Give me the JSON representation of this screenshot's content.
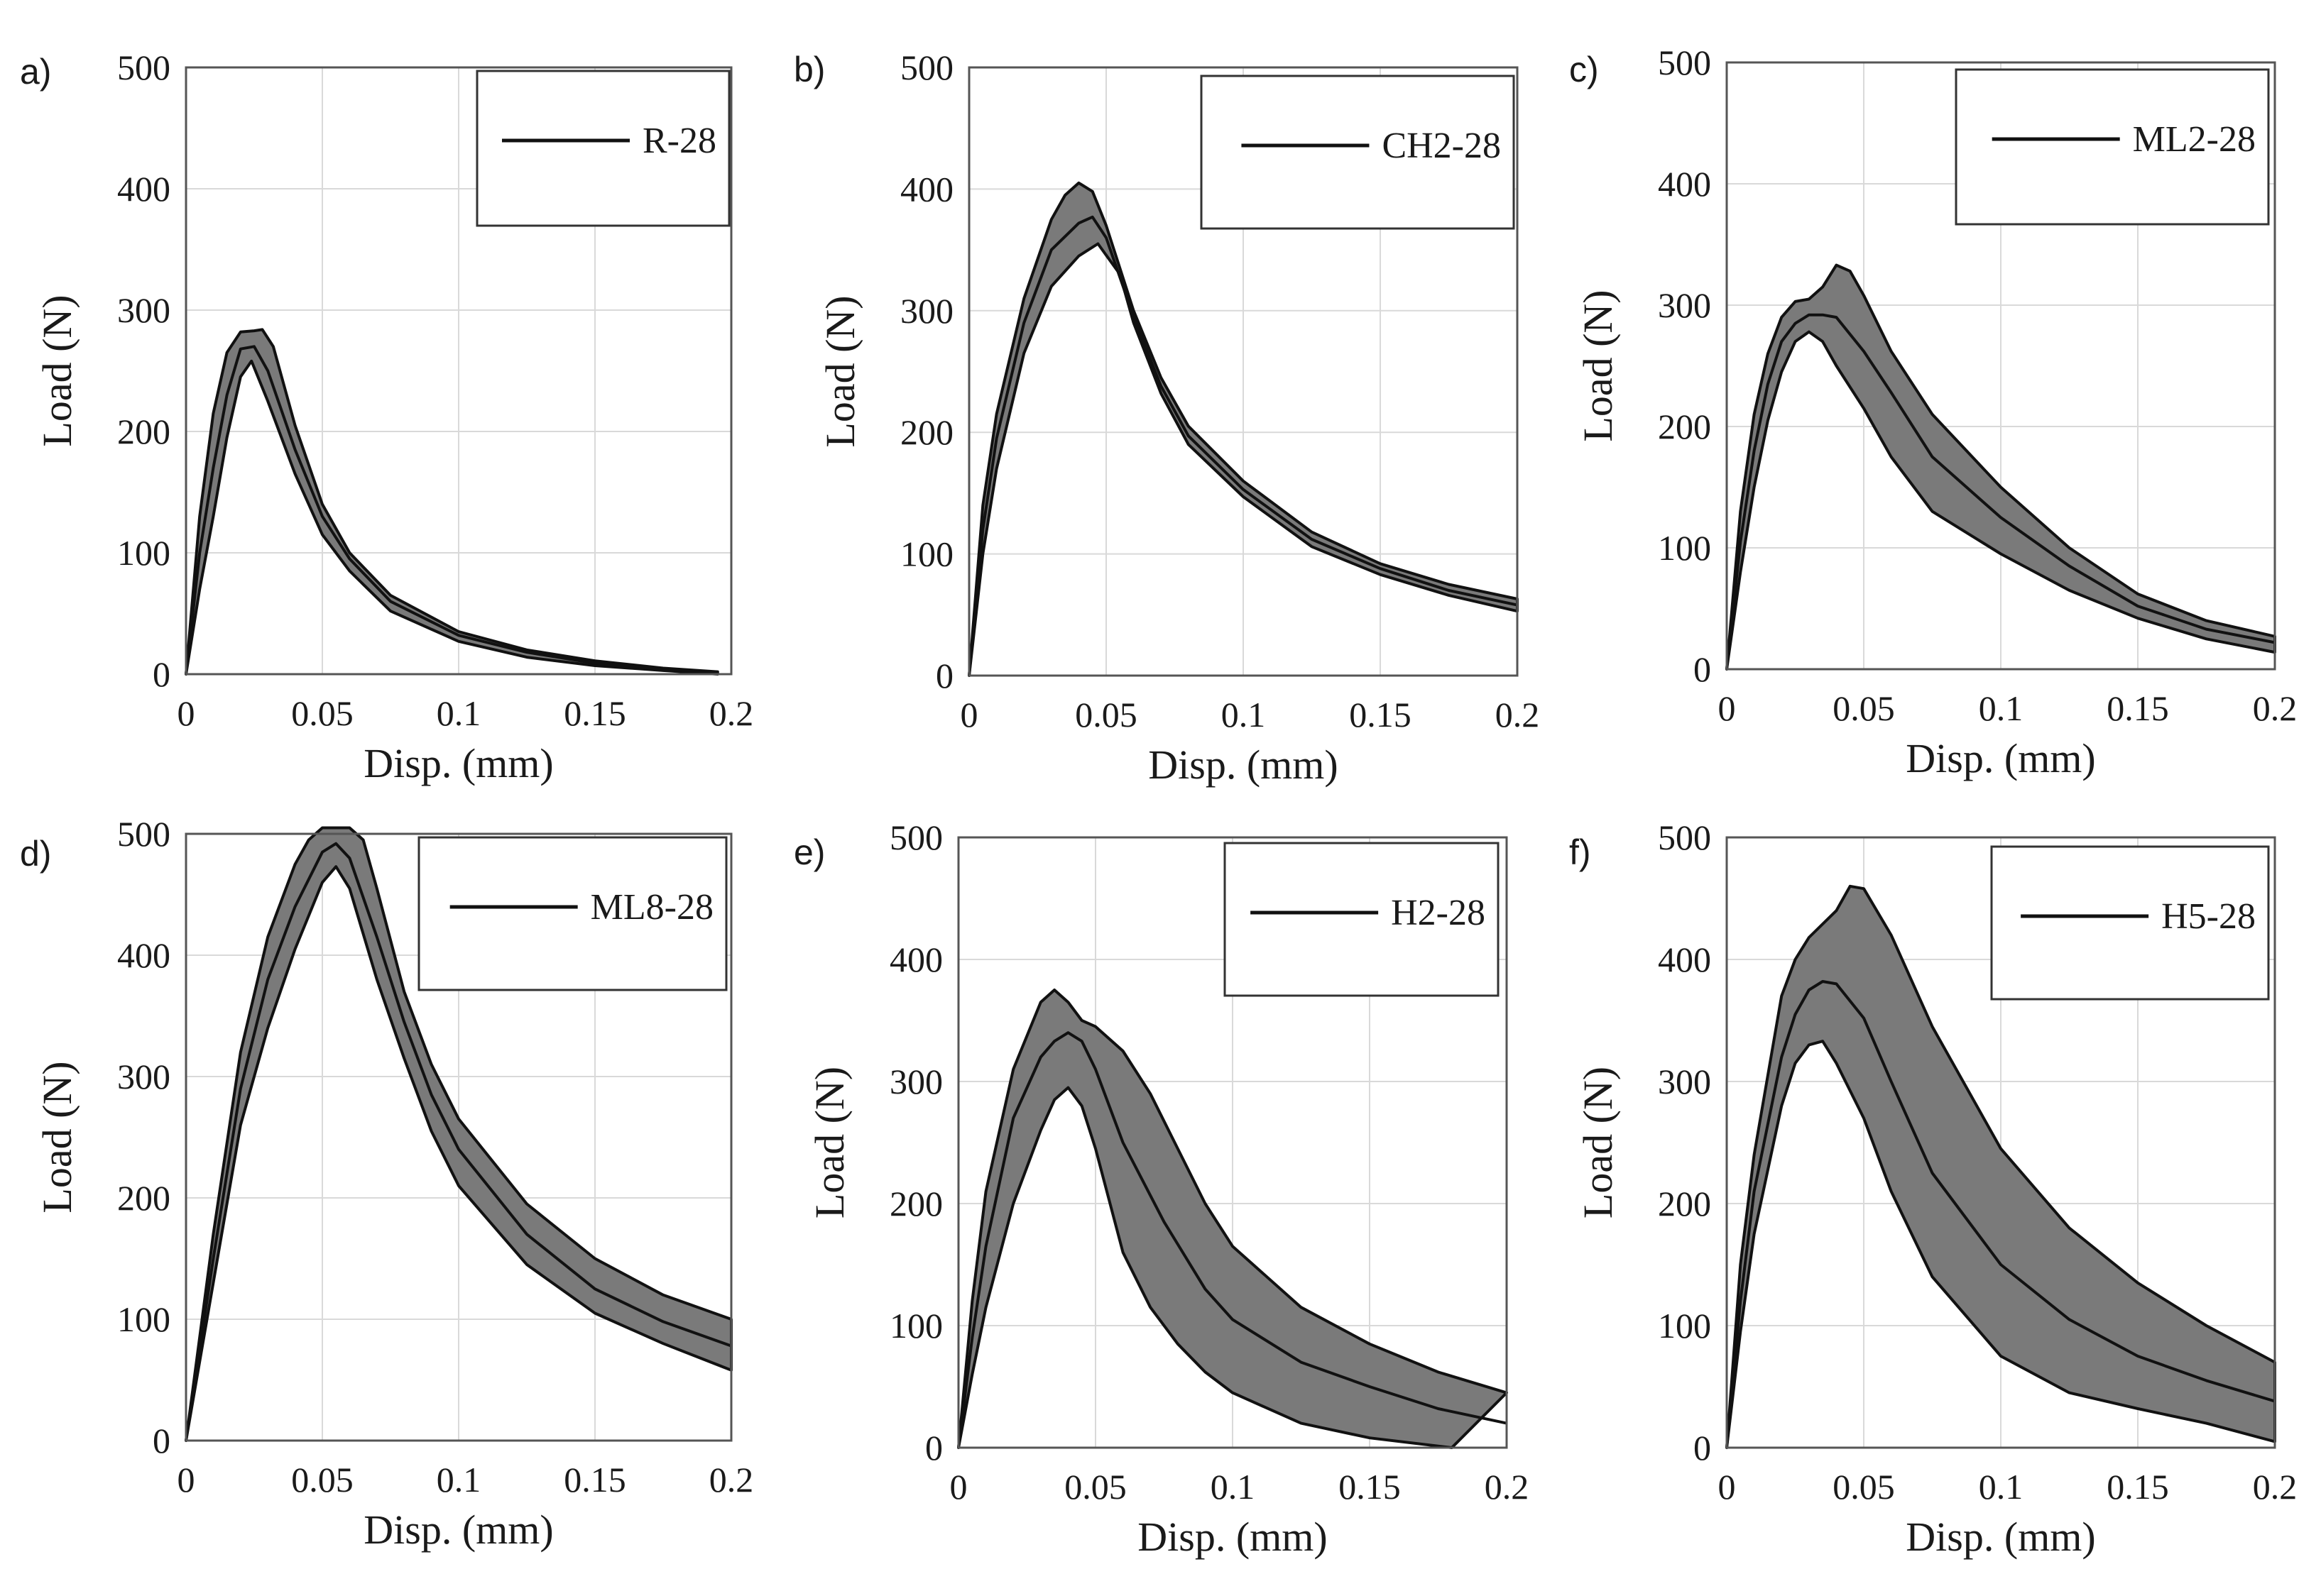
{
  "figure": {
    "xlabel": "Disp. (mm)",
    "ylabel": "Load (N)",
    "band_color": "#7a7a7a",
    "line_color": "#111111"
  },
  "chart_data": [
    {
      "panel": "a)",
      "type": "line",
      "legend": "R-28",
      "xlabel": "Disp. (mm)",
      "ylabel": "Load (N)",
      "xlim": [
        0,
        0.2
      ],
      "ylim": [
        0,
        500
      ],
      "xticks": [
        0,
        0.05,
        0.1,
        0.15,
        0.2
      ],
      "xtick_labels": [
        "0",
        "0.05",
        "0.1",
        "0.15",
        "0.2"
      ],
      "yticks": [
        0,
        100,
        200,
        300,
        400,
        500
      ],
      "ytick_labels": [
        "0",
        "100",
        "200",
        "300",
        "400",
        "500"
      ],
      "series": [
        {
          "name": "R-28 upper bound",
          "x": [
            0,
            0.005,
            0.01,
            0.015,
            0.02,
            0.025,
            0.028,
            0.032,
            0.04,
            0.05,
            0.06,
            0.075,
            0.1,
            0.125,
            0.15,
            0.175,
            0.195
          ],
          "values": [
            0,
            130,
            215,
            265,
            282,
            283,
            284,
            270,
            205,
            140,
            100,
            65,
            35,
            20,
            11,
            5,
            2
          ]
        },
        {
          "name": "R-28 mean",
          "x": [
            0,
            0.005,
            0.01,
            0.015,
            0.02,
            0.025,
            0.03,
            0.04,
            0.05,
            0.06,
            0.075,
            0.1,
            0.125,
            0.15,
            0.175,
            0.195
          ],
          "values": [
            0,
            100,
            170,
            230,
            268,
            270,
            250,
            185,
            130,
            95,
            60,
            32,
            18,
            9,
            4,
            1
          ]
        },
        {
          "name": "R-28 lower bound",
          "x": [
            0,
            0.005,
            0.01,
            0.015,
            0.02,
            0.024,
            0.03,
            0.04,
            0.05,
            0.06,
            0.075,
            0.1,
            0.125,
            0.15,
            0.175,
            0.195
          ],
          "values": [
            0,
            70,
            130,
            195,
            245,
            258,
            225,
            165,
            115,
            85,
            52,
            27,
            14,
            7,
            3,
            0
          ]
        }
      ]
    },
    {
      "panel": "b)",
      "type": "line",
      "legend": "CH2-28",
      "xlabel": "Disp. (mm)",
      "ylabel": "Load (N)",
      "xlim": [
        0,
        0.2
      ],
      "ylim": [
        0,
        500
      ],
      "xticks": [
        0,
        0.05,
        0.1,
        0.15,
        0.2
      ],
      "xtick_labels": [
        "0",
        "0.05",
        "0.1",
        "0.15",
        "0.2"
      ],
      "yticks": [
        0,
        100,
        200,
        300,
        400,
        500
      ],
      "ytick_labels": [
        "0",
        "100",
        "200",
        "300",
        "400",
        "500"
      ],
      "series": [
        {
          "name": "CH2-28 upper bound",
          "x": [
            0,
            0.005,
            0.01,
            0.02,
            0.03,
            0.035,
            0.04,
            0.045,
            0.05,
            0.06,
            0.07,
            0.08,
            0.1,
            0.125,
            0.15,
            0.175,
            0.2
          ],
          "values": [
            0,
            140,
            215,
            310,
            375,
            395,
            405,
            398,
            370,
            300,
            245,
            205,
            160,
            118,
            92,
            75,
            63
          ]
        },
        {
          "name": "CH2-28 mean",
          "x": [
            0,
            0.005,
            0.01,
            0.02,
            0.03,
            0.04,
            0.045,
            0.05,
            0.06,
            0.07,
            0.08,
            0.1,
            0.125,
            0.15,
            0.175,
            0.2
          ],
          "values": [
            0,
            120,
            195,
            290,
            350,
            372,
            377,
            360,
            295,
            238,
            197,
            153,
            112,
            88,
            70,
            58
          ]
        },
        {
          "name": "CH2-28 lower bound",
          "x": [
            0,
            0.005,
            0.01,
            0.02,
            0.03,
            0.04,
            0.047,
            0.055,
            0.06,
            0.07,
            0.08,
            0.1,
            0.125,
            0.15,
            0.175,
            0.2
          ],
          "values": [
            0,
            100,
            170,
            265,
            320,
            345,
            355,
            330,
            290,
            232,
            190,
            147,
            106,
            83,
            66,
            53
          ]
        }
      ]
    },
    {
      "panel": "c)",
      "type": "line",
      "legend": "ML2-28",
      "xlabel": "Disp. (mm)",
      "ylabel": "Load (N)",
      "xlim": [
        0,
        0.2
      ],
      "ylim": [
        0,
        500
      ],
      "xticks": [
        0,
        0.05,
        0.1,
        0.15,
        0.2
      ],
      "xtick_labels": [
        "0",
        "0.05",
        "0.1",
        "0.15",
        "0.2"
      ],
      "yticks": [
        0,
        100,
        200,
        300,
        400,
        500
      ],
      "ytick_labels": [
        "0",
        "100",
        "200",
        "300",
        "400",
        "500"
      ],
      "series": [
        {
          "name": "ML2-28 upper bound",
          "x": [
            0,
            0.005,
            0.01,
            0.015,
            0.02,
            0.025,
            0.03,
            0.035,
            0.04,
            0.045,
            0.05,
            0.06,
            0.075,
            0.1,
            0.125,
            0.15,
            0.175,
            0.2
          ],
          "values": [
            0,
            130,
            210,
            260,
            290,
            303,
            305,
            315,
            333,
            328,
            308,
            262,
            210,
            150,
            100,
            62,
            40,
            27
          ]
        },
        {
          "name": "ML2-28 mean",
          "x": [
            0,
            0.005,
            0.01,
            0.015,
            0.02,
            0.025,
            0.03,
            0.035,
            0.04,
            0.05,
            0.06,
            0.075,
            0.1,
            0.125,
            0.15,
            0.175,
            0.2
          ],
          "values": [
            0,
            105,
            180,
            235,
            270,
            285,
            292,
            292,
            290,
            262,
            228,
            175,
            125,
            85,
            52,
            33,
            22
          ]
        },
        {
          "name": "ML2-28 lower bound",
          "x": [
            0,
            0.005,
            0.01,
            0.015,
            0.02,
            0.025,
            0.03,
            0.035,
            0.04,
            0.05,
            0.06,
            0.075,
            0.1,
            0.125,
            0.15,
            0.175,
            0.2
          ],
          "values": [
            0,
            80,
            150,
            205,
            245,
            270,
            278,
            270,
            250,
            215,
            175,
            130,
            95,
            65,
            42,
            25,
            14
          ]
        }
      ]
    },
    {
      "panel": "d)",
      "type": "line",
      "legend": "ML8-28",
      "xlabel": "Disp. (mm)",
      "ylabel": "Load (N)",
      "xlim": [
        0,
        0.2
      ],
      "ylim": [
        0,
        500
      ],
      "xticks": [
        0,
        0.05,
        0.1,
        0.15,
        0.2
      ],
      "xtick_labels": [
        "0",
        "0.05",
        "0.1",
        "0.15",
        "0.2"
      ],
      "yticks": [
        0,
        100,
        200,
        300,
        400,
        500
      ],
      "ytick_labels": [
        "0",
        "100",
        "200",
        "300",
        "400",
        "500"
      ],
      "series": [
        {
          "name": "ML8-28 upper bound",
          "x": [
            0,
            0.01,
            0.02,
            0.03,
            0.04,
            0.045,
            0.05,
            0.06,
            0.065,
            0.07,
            0.08,
            0.09,
            0.1,
            0.125,
            0.15,
            0.175,
            0.2
          ],
          "values": [
            0,
            170,
            320,
            415,
            475,
            495,
            505,
            505,
            495,
            455,
            370,
            310,
            265,
            195,
            150,
            120,
            100
          ]
        },
        {
          "name": "ML8-28 mean",
          "x": [
            0,
            0.01,
            0.02,
            0.03,
            0.04,
            0.05,
            0.055,
            0.06,
            0.07,
            0.08,
            0.09,
            0.1,
            0.125,
            0.15,
            0.175,
            0.2
          ],
          "values": [
            0,
            150,
            290,
            380,
            440,
            485,
            492,
            480,
            415,
            345,
            285,
            240,
            170,
            125,
            98,
            78
          ]
        },
        {
          "name": "ML8-28 lower bound",
          "x": [
            0,
            0.01,
            0.02,
            0.03,
            0.04,
            0.05,
            0.055,
            0.06,
            0.07,
            0.08,
            0.09,
            0.1,
            0.125,
            0.15,
            0.175,
            0.2
          ],
          "values": [
            0,
            130,
            260,
            340,
            405,
            460,
            473,
            455,
            380,
            315,
            255,
            210,
            145,
            105,
            80,
            58
          ]
        }
      ]
    },
    {
      "panel": "e)",
      "type": "line",
      "legend": "H2-28",
      "xlabel": "Disp. (mm)",
      "ylabel": "Load (N)",
      "xlim": [
        0,
        0.2
      ],
      "ylim": [
        0,
        500
      ],
      "xticks": [
        0,
        0.05,
        0.1,
        0.15,
        0.2
      ],
      "xtick_labels": [
        "0",
        "0.05",
        "0.1",
        "0.15",
        "0.2"
      ],
      "yticks": [
        0,
        100,
        200,
        300,
        400,
        500
      ],
      "ytick_labels": [
        "0",
        "100",
        "200",
        "300",
        "400",
        "500"
      ],
      "series": [
        {
          "name": "H2-28 upper bound",
          "x": [
            0,
            0.005,
            0.01,
            0.02,
            0.03,
            0.035,
            0.04,
            0.045,
            0.05,
            0.06,
            0.07,
            0.08,
            0.09,
            0.1,
            0.125,
            0.15,
            0.175,
            0.2
          ],
          "values": [
            0,
            120,
            210,
            310,
            365,
            375,
            365,
            350,
            345,
            325,
            290,
            245,
            200,
            165,
            115,
            85,
            62,
            45
          ]
        },
        {
          "name": "H2-28 mean",
          "x": [
            0,
            0.005,
            0.01,
            0.02,
            0.03,
            0.035,
            0.04,
            0.045,
            0.05,
            0.06,
            0.075,
            0.09,
            0.1,
            0.125,
            0.15,
            0.175,
            0.2
          ],
          "values": [
            0,
            90,
            165,
            270,
            320,
            333,
            340,
            333,
            310,
            250,
            185,
            130,
            105,
            70,
            50,
            32,
            20
          ]
        },
        {
          "name": "H2-28 lower bound",
          "x": [
            0,
            0.005,
            0.01,
            0.02,
            0.03,
            0.035,
            0.04,
            0.045,
            0.05,
            0.06,
            0.07,
            0.08,
            0.09,
            0.1,
            0.125,
            0.15,
            0.18
          ],
          "values": [
            0,
            60,
            115,
            200,
            260,
            285,
            295,
            280,
            245,
            160,
            115,
            85,
            62,
            45,
            20,
            8,
            0
          ]
        }
      ]
    },
    {
      "panel": "f)",
      "type": "line",
      "legend": "H5-28",
      "xlabel": "Disp. (mm)",
      "ylabel": "Load (N)",
      "xlim": [
        0,
        0.2
      ],
      "ylim": [
        0,
        500
      ],
      "xticks": [
        0,
        0.05,
        0.1,
        0.15,
        0.2
      ],
      "xtick_labels": [
        "0",
        "0.05",
        "0.1",
        "0.15",
        "0.2"
      ],
      "yticks": [
        0,
        100,
        200,
        300,
        400,
        500
      ],
      "ytick_labels": [
        "0",
        "100",
        "200",
        "300",
        "400",
        "500"
      ],
      "series": [
        {
          "name": "H5-28 upper bound",
          "x": [
            0,
            0.005,
            0.01,
            0.02,
            0.025,
            0.03,
            0.04,
            0.045,
            0.05,
            0.06,
            0.075,
            0.1,
            0.125,
            0.15,
            0.175,
            0.2
          ],
          "values": [
            0,
            150,
            240,
            370,
            400,
            418,
            440,
            460,
            458,
            420,
            345,
            245,
            180,
            135,
            100,
            70
          ]
        },
        {
          "name": "H5-28 mean",
          "x": [
            0,
            0.005,
            0.01,
            0.02,
            0.025,
            0.03,
            0.035,
            0.04,
            0.05,
            0.06,
            0.075,
            0.1,
            0.125,
            0.15,
            0.175,
            0.2
          ],
          "values": [
            0,
            120,
            210,
            320,
            355,
            375,
            382,
            380,
            352,
            300,
            225,
            150,
            105,
            75,
            55,
            38
          ]
        },
        {
          "name": "H5-28 lower bound",
          "x": [
            0,
            0.005,
            0.01,
            0.02,
            0.025,
            0.03,
            0.035,
            0.04,
            0.05,
            0.06,
            0.075,
            0.1,
            0.125,
            0.15,
            0.175,
            0.2
          ],
          "values": [
            0,
            95,
            175,
            280,
            315,
            330,
            333,
            315,
            270,
            210,
            140,
            75,
            45,
            32,
            20,
            5
          ]
        }
      ]
    }
  ]
}
